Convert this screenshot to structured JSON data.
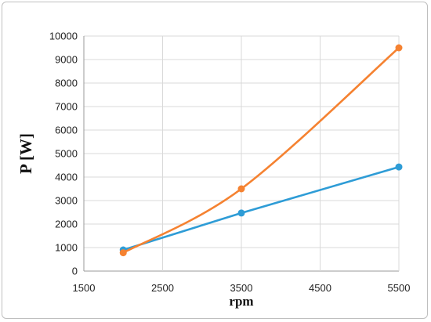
{
  "chart_data": {
    "type": "line",
    "title": "",
    "xlabel": "rpm",
    "ylabel": "P [W]",
    "xlim": [
      1500,
      5500
    ],
    "ylim": [
      0,
      10000
    ],
    "xticks": [
      1500,
      2500,
      3500,
      4500,
      5500
    ],
    "yticks": [
      0,
      1000,
      2000,
      3000,
      4000,
      5000,
      6000,
      7000,
      8000,
      9000,
      10000
    ],
    "grid": true,
    "legend": "none",
    "series": [
      {
        "color": "#2e9cd6",
        "smooth": false,
        "x": [
          2000,
          3500,
          5500
        ],
        "y": [
          900,
          2470,
          4430
        ]
      },
      {
        "color": "#f58231",
        "smooth": true,
        "x": [
          2000,
          3500,
          5500
        ],
        "y": [
          780,
          3500,
          9500
        ]
      }
    ]
  }
}
